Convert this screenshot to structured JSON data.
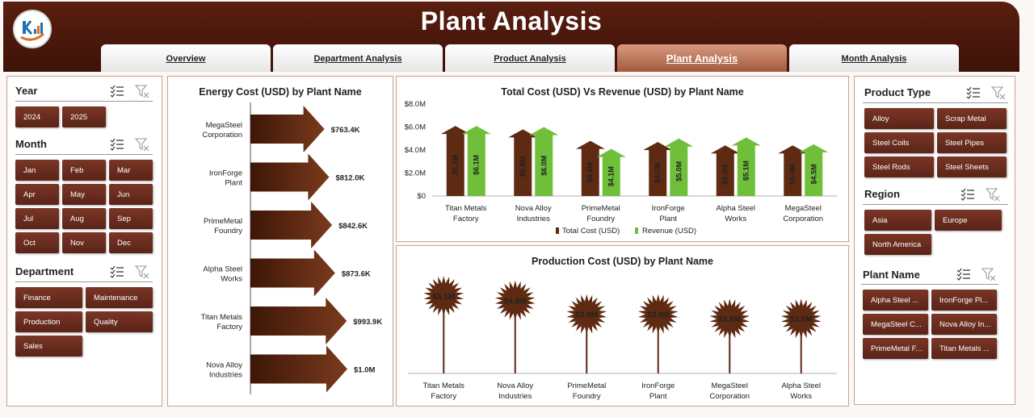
{
  "header": {
    "title": "Plant Analysis"
  },
  "tabs": [
    {
      "label": "Overview",
      "active": false
    },
    {
      "label": "Department Analysis",
      "active": false
    },
    {
      "label": "Product Analysis",
      "active": false
    },
    {
      "label": "Plant Analysis",
      "active": true
    },
    {
      "label": "Month Analysis",
      "active": false
    }
  ],
  "left_slicers": {
    "year": {
      "title": "Year",
      "items": [
        "2024",
        "2025"
      ]
    },
    "month": {
      "title": "Month",
      "items": [
        "Jan",
        "Feb",
        "Mar",
        "Apr",
        "May",
        "Jun",
        "Jul",
        "Aug",
        "Sep",
        "Oct",
        "Nov",
        "Dec"
      ]
    },
    "department": {
      "title": "Department",
      "items": [
        "Finance",
        "Maintenance",
        "Production",
        "Quality",
        "Sales"
      ]
    }
  },
  "right_slicers": {
    "product_type": {
      "title": "Product Type",
      "items": [
        "Alloy",
        "Scrap Metal",
        "Steel Coils",
        "Steel Pipes",
        "Steel Rods",
        "Steel Sheets"
      ]
    },
    "region": {
      "title": "Region",
      "items": [
        "Asia",
        "Europe",
        "North America"
      ]
    },
    "plant_name": {
      "title": "Plant Name",
      "items": [
        "Alpha Steel ...",
        "IronForge Pl...",
        "MegaSteel C...",
        "Nova Alloy In...",
        "PrimeMetal F...",
        "Titan Metals ..."
      ]
    }
  },
  "colors": {
    "header": "#4a170b",
    "accent_brown": "#5e2a12",
    "revenue_green": "#6fbf3a",
    "slicer_button": "#6a2d1f",
    "active_tab": "#c07a5e"
  },
  "chart_data": [
    {
      "type": "bar",
      "orientation": "horizontal",
      "title": "Energy Cost (USD) by Plant Name",
      "categories": [
        "MegaSteel Corporation",
        "IronForge Plant",
        "PrimeMetal Foundry",
        "Alpha Steel Works",
        "Titan Metals Factory",
        "Nova Alloy Industries"
      ],
      "values": [
        763400,
        812000,
        842600,
        873600,
        993900,
        1000000
      ],
      "data_labels": [
        "$763.4K",
        "$812.0K",
        "$842.6K",
        "$873.6K",
        "$993.9K",
        "$1.0M"
      ]
    },
    {
      "type": "bar",
      "title": "Total Cost (USD) Vs Revenue (USD) by Plant Name",
      "categories": [
        "Titan Metals Factory",
        "Nova Alloy Industries",
        "PrimeMetal Foundry",
        "IronForge Plant",
        "Alpha Steel Works",
        "MegaSteel Corporation"
      ],
      "series": [
        {
          "name": "Total Cost (USD)",
          "values": [
            6.1,
            5.8,
            4.8,
            4.7,
            4.4,
            4.4
          ],
          "labels": [
            "$6.1M",
            "$5.8M",
            "$4.8M",
            "$4.7M",
            "$4.4M",
            "$4.4M"
          ],
          "color": "#5e2a12"
        },
        {
          "name": "Revenue (USD)",
          "values": [
            6.1,
            6.0,
            4.1,
            5.0,
            5.1,
            4.5
          ],
          "labels": [
            "$6.1M",
            "$6.0M",
            "$4.1M",
            "$5.0M",
            "$5.1M",
            "$4.5M"
          ],
          "color": "#6fbf3a"
        }
      ],
      "yticks": [
        "$8.0M",
        "$6.0M",
        "$4.0M",
        "$2.0M",
        "$0"
      ],
      "ylim": [
        0,
        8
      ],
      "legend": "bottom"
    },
    {
      "type": "bar",
      "title": "Production Cost (USD) by Plant Name",
      "categories": [
        "Titan Metals Factory",
        "Nova Alloy Industries",
        "PrimeMetal Foundry",
        "IronForge Plant",
        "MegaSteel Corporation",
        "Alpha Steel Works"
      ],
      "values": [
        5.1,
        4.8,
        3.9,
        3.9,
        3.6,
        3.6
      ],
      "data_labels": [
        "$5.1M",
        "$4.8M",
        "$3.9M",
        "$3.9M",
        "$3.6M",
        "$3.6M"
      ]
    }
  ]
}
